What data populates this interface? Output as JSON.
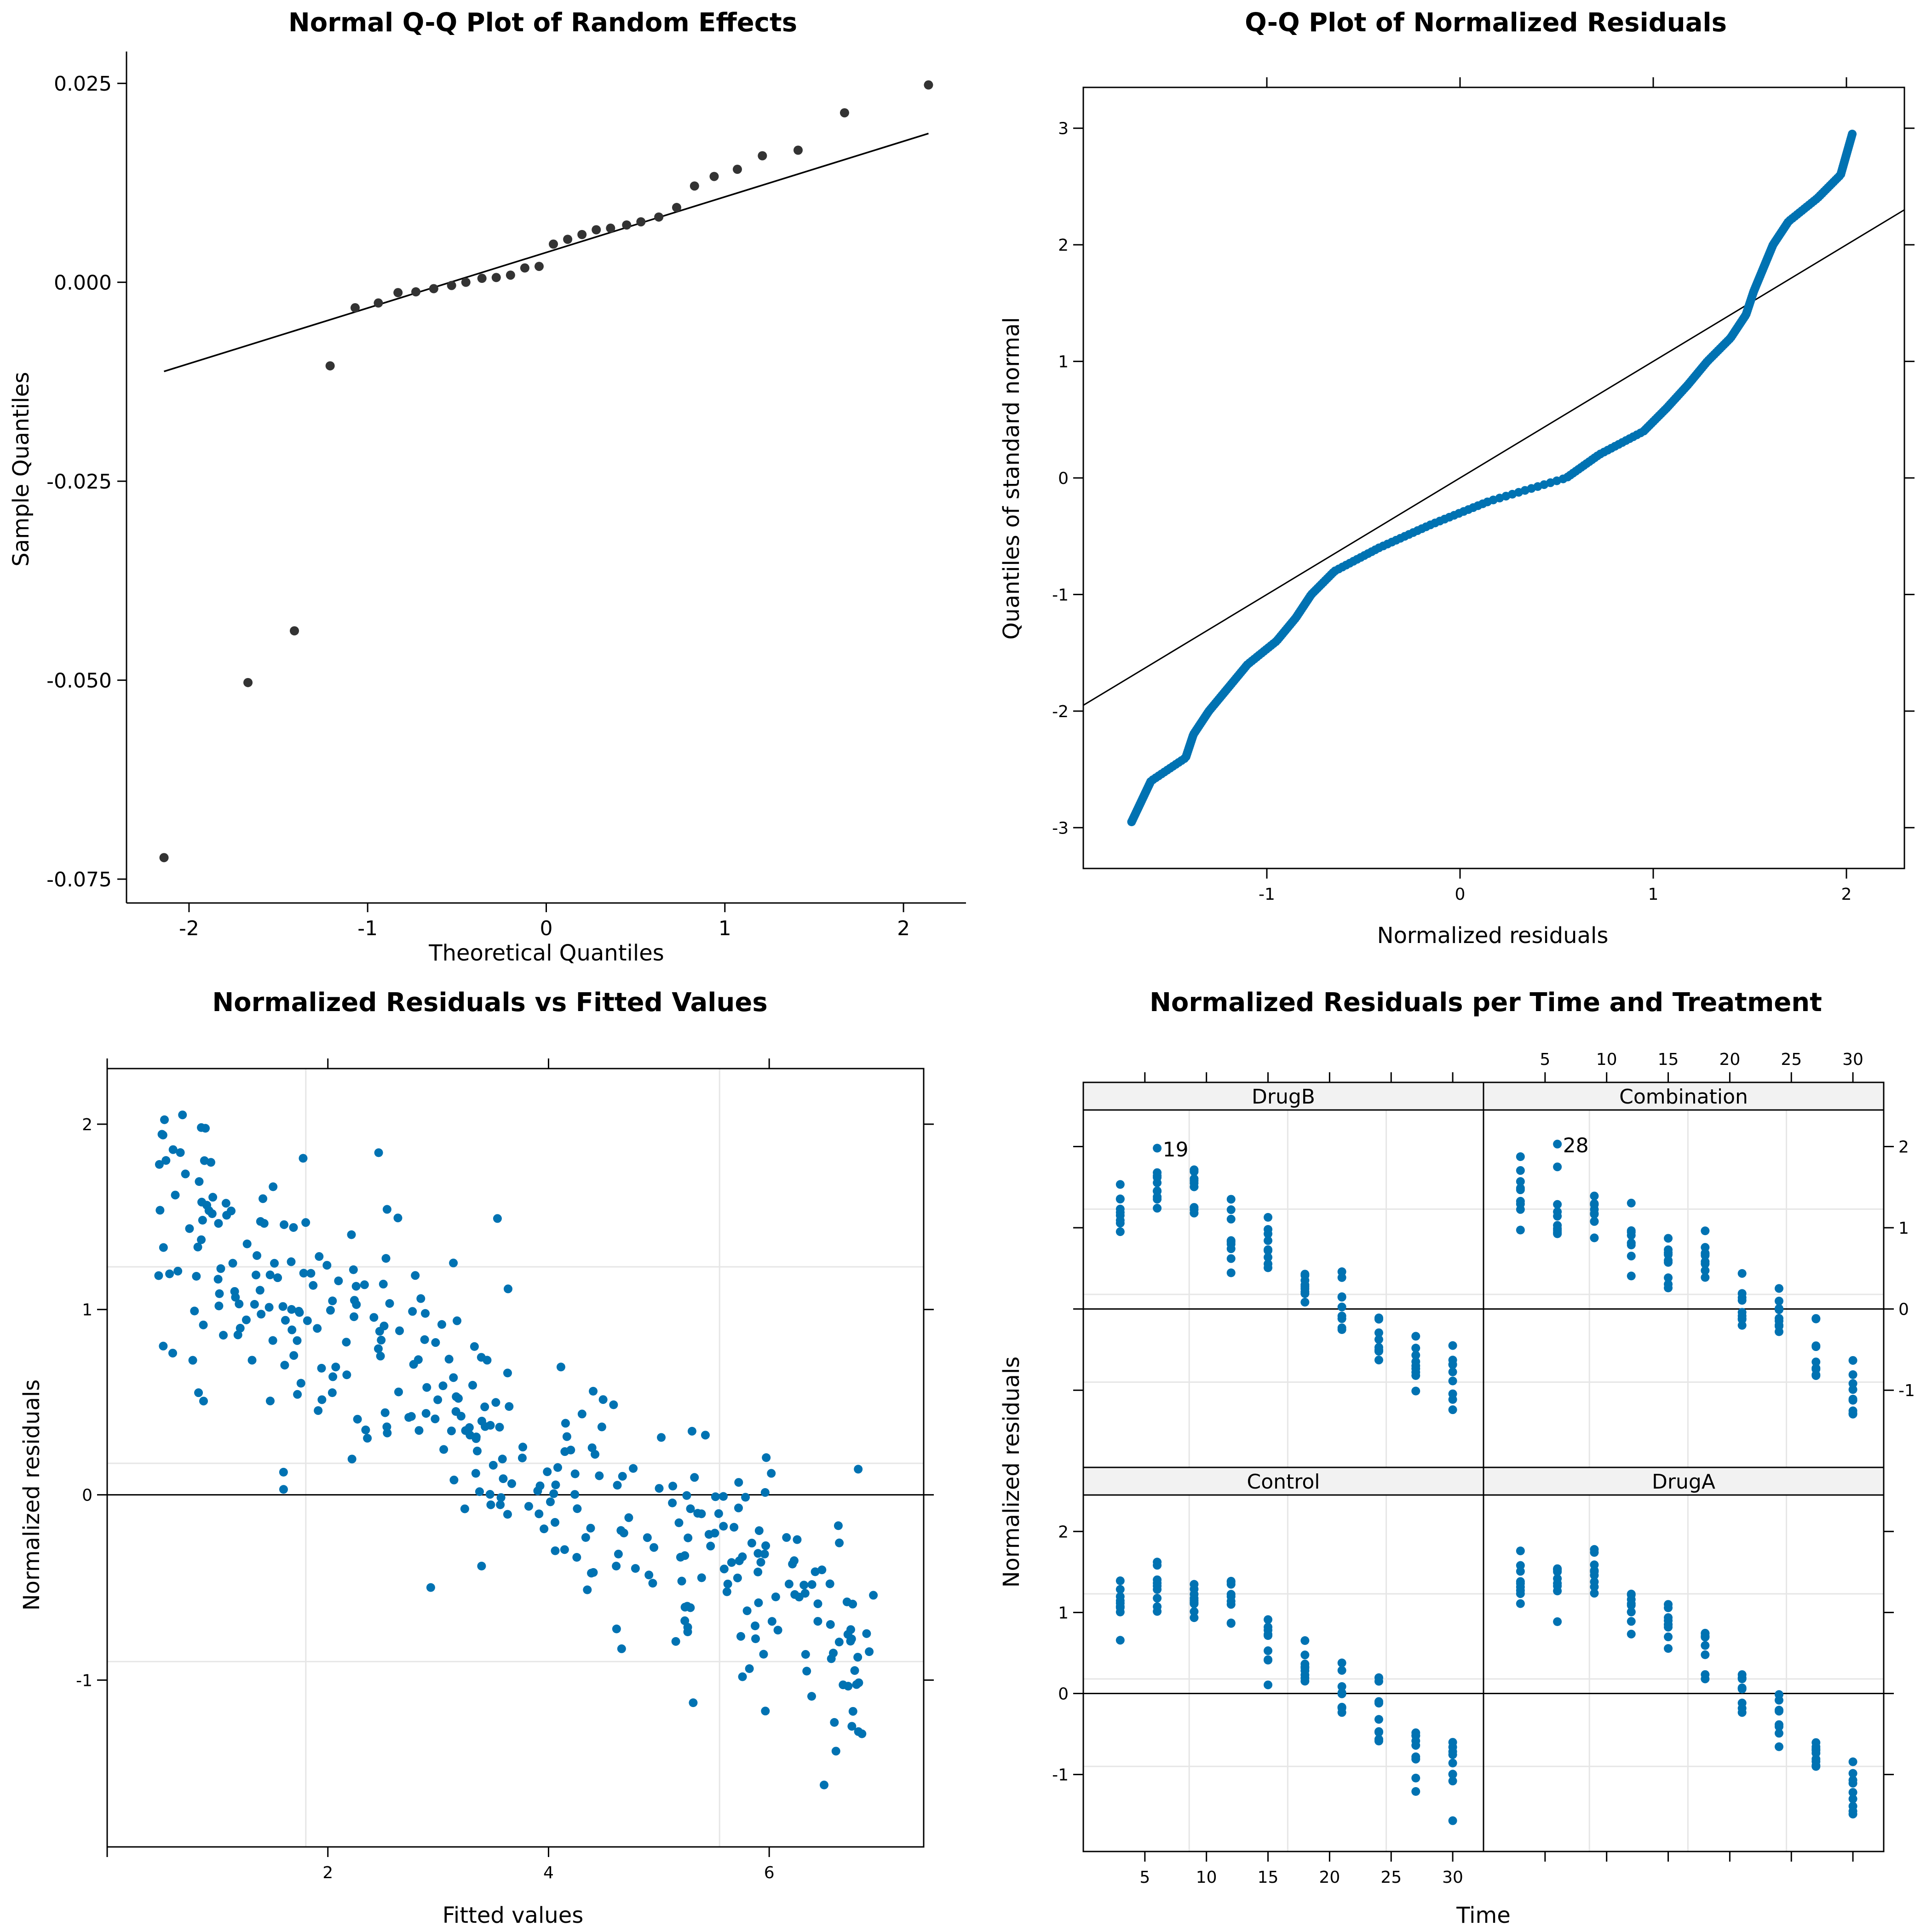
{
  "colors": {
    "dark_point": "#333333",
    "blue_point": "#0072b2",
    "grid": "#e6e6e6",
    "strip_bg": "#f2f2f2"
  },
  "chart_data": [
    {
      "type": "scatter",
      "title": "Normal Q-Q Plot of Random Effects",
      "xlabel": "Theoretical Quantiles",
      "ylabel": "Sample Quantiles",
      "xlim": [
        -2.35,
        2.35
      ],
      "ylim": [
        -0.078,
        0.029
      ],
      "xticks": [
        -2,
        -1,
        0,
        1,
        2
      ],
      "yticks": [
        -0.075,
        -0.05,
        -0.025,
        0.0,
        0.025
      ],
      "ytick_labels": [
        "-0.075",
        "-0.050",
        "-0.025",
        "0.000",
        "0.025"
      ],
      "x": [
        -2.14,
        -1.67,
        -1.41,
        -1.21,
        -1.07,
        -0.94,
        -0.83,
        -0.73,
        -0.63,
        -0.53,
        -0.45,
        -0.36,
        -0.28,
        -0.2,
        -0.12,
        -0.04,
        0.04,
        0.12,
        0.2,
        0.28,
        0.36,
        0.45,
        0.53,
        0.63,
        0.73,
        0.83,
        0.94,
        1.07,
        1.21,
        1.41,
        1.67,
        2.14
      ],
      "y": [
        -0.0723,
        -0.0503,
        -0.0438,
        -0.0105,
        -0.0032,
        -0.0026,
        -0.0013,
        -0.0012,
        -0.0008,
        -0.0004,
        0.0,
        0.0005,
        0.0006,
        0.0009,
        0.0018,
        0.002,
        0.0048,
        0.0054,
        0.006,
        0.0066,
        0.0068,
        0.0072,
        0.0076,
        0.0082,
        0.0094,
        0.0121,
        0.0133,
        0.0142,
        0.0159,
        0.0166,
        0.0213,
        0.0248
      ],
      "reference_line": {
        "x": [
          -2.14,
          2.14
        ],
        "y": [
          -0.0112,
          0.0187
        ]
      }
    },
    {
      "type": "scatter",
      "title": "Q-Q Plot of Normalized Residuals",
      "xlabel": "Normalized residuals",
      "ylabel": "Quantiles of standard normal",
      "xlim": [
        -1.95,
        2.3
      ],
      "ylim": [
        -3.35,
        3.35
      ],
      "xticks": [
        -1,
        0,
        1,
        2
      ],
      "yticks": [
        -3,
        -2,
        -1,
        0,
        1,
        2,
        3
      ],
      "n_points": 360,
      "quantile_curve": {
        "theoretical": [
          -2.95,
          -2.6,
          -2.4,
          -2.2,
          -2.0,
          -1.8,
          -1.6,
          -1.4,
          -1.2,
          -1.0,
          -0.8,
          -0.6,
          -0.4,
          -0.2,
          0.0,
          0.2,
          0.4,
          0.6,
          0.8,
          1.0,
          1.2,
          1.4,
          1.6,
          1.8,
          2.0,
          2.2,
          2.4,
          2.6,
          2.95
        ],
        "residual": [
          -1.7,
          -1.6,
          -1.42,
          -1.38,
          -1.3,
          -1.2,
          -1.1,
          -0.95,
          -0.85,
          -0.77,
          -0.65,
          -0.42,
          -0.15,
          0.15,
          0.55,
          0.72,
          0.95,
          1.07,
          1.18,
          1.28,
          1.4,
          1.48,
          1.52,
          1.57,
          1.62,
          1.7,
          1.85,
          1.97,
          2.03
        ]
      },
      "reference_line": {
        "x": [
          -1.95,
          2.3
        ],
        "y": [
          -1.95,
          2.3
        ]
      }
    },
    {
      "type": "scatter",
      "title": "Normalized Residuals vs Fitted Values",
      "xlabel": "Fitted values",
      "ylabel": "Normalized residuals",
      "xlim": [
        0.0,
        7.4
      ],
      "ylim": [
        -1.9,
        2.3
      ],
      "xticks": [
        2,
        4,
        6
      ],
      "yticks": [
        -1,
        0,
        1,
        2
      ],
      "n_points": 360,
      "trend": {
        "intercept": 1.7,
        "slope": -0.37
      },
      "reference_line_y": 0
    },
    {
      "type": "scatter",
      "title": "Normalized Residuals per Time and Treatment",
      "xlabel": "Time",
      "ylabel": "Normalized residuals",
      "xlim": [
        0.0,
        32.5
      ],
      "ylim": [
        -1.95,
        2.45
      ],
      "xticks": [
        5,
        10,
        15,
        20,
        25,
        30
      ],
      "yticks": [
        -1,
        0,
        1,
        2
      ],
      "times": [
        3,
        6,
        9,
        12,
        15,
        18,
        21,
        24,
        27,
        30
      ],
      "panels": [
        {
          "name": "DrugB",
          "means": [
            1.25,
            1.4,
            1.45,
            1.0,
            0.8,
            0.4,
            -0.05,
            -0.3,
            -0.65,
            -0.8
          ],
          "labeled_outlier": {
            "label": "19",
            "time": 6,
            "value": 1.98
          }
        },
        {
          "name": "Combination",
          "means": [
            1.35,
            1.15,
            1.15,
            0.95,
            0.6,
            0.55,
            0.0,
            -0.1,
            -0.6,
            -0.95
          ],
          "labeled_outlier": {
            "label": "28",
            "time": 6,
            "value": 2.03
          }
        },
        {
          "name": "Control",
          "means": [
            1.15,
            1.3,
            1.25,
            1.05,
            0.6,
            0.35,
            0.05,
            -0.35,
            -0.7,
            -0.95
          ],
          "labeled_outlier": null
        },
        {
          "name": "DrugA",
          "means": [
            1.3,
            1.35,
            1.45,
            1.1,
            0.95,
            0.55,
            -0.05,
            -0.25,
            -0.7,
            -1.25
          ],
          "labeled_outlier": null
        }
      ]
    }
  ]
}
